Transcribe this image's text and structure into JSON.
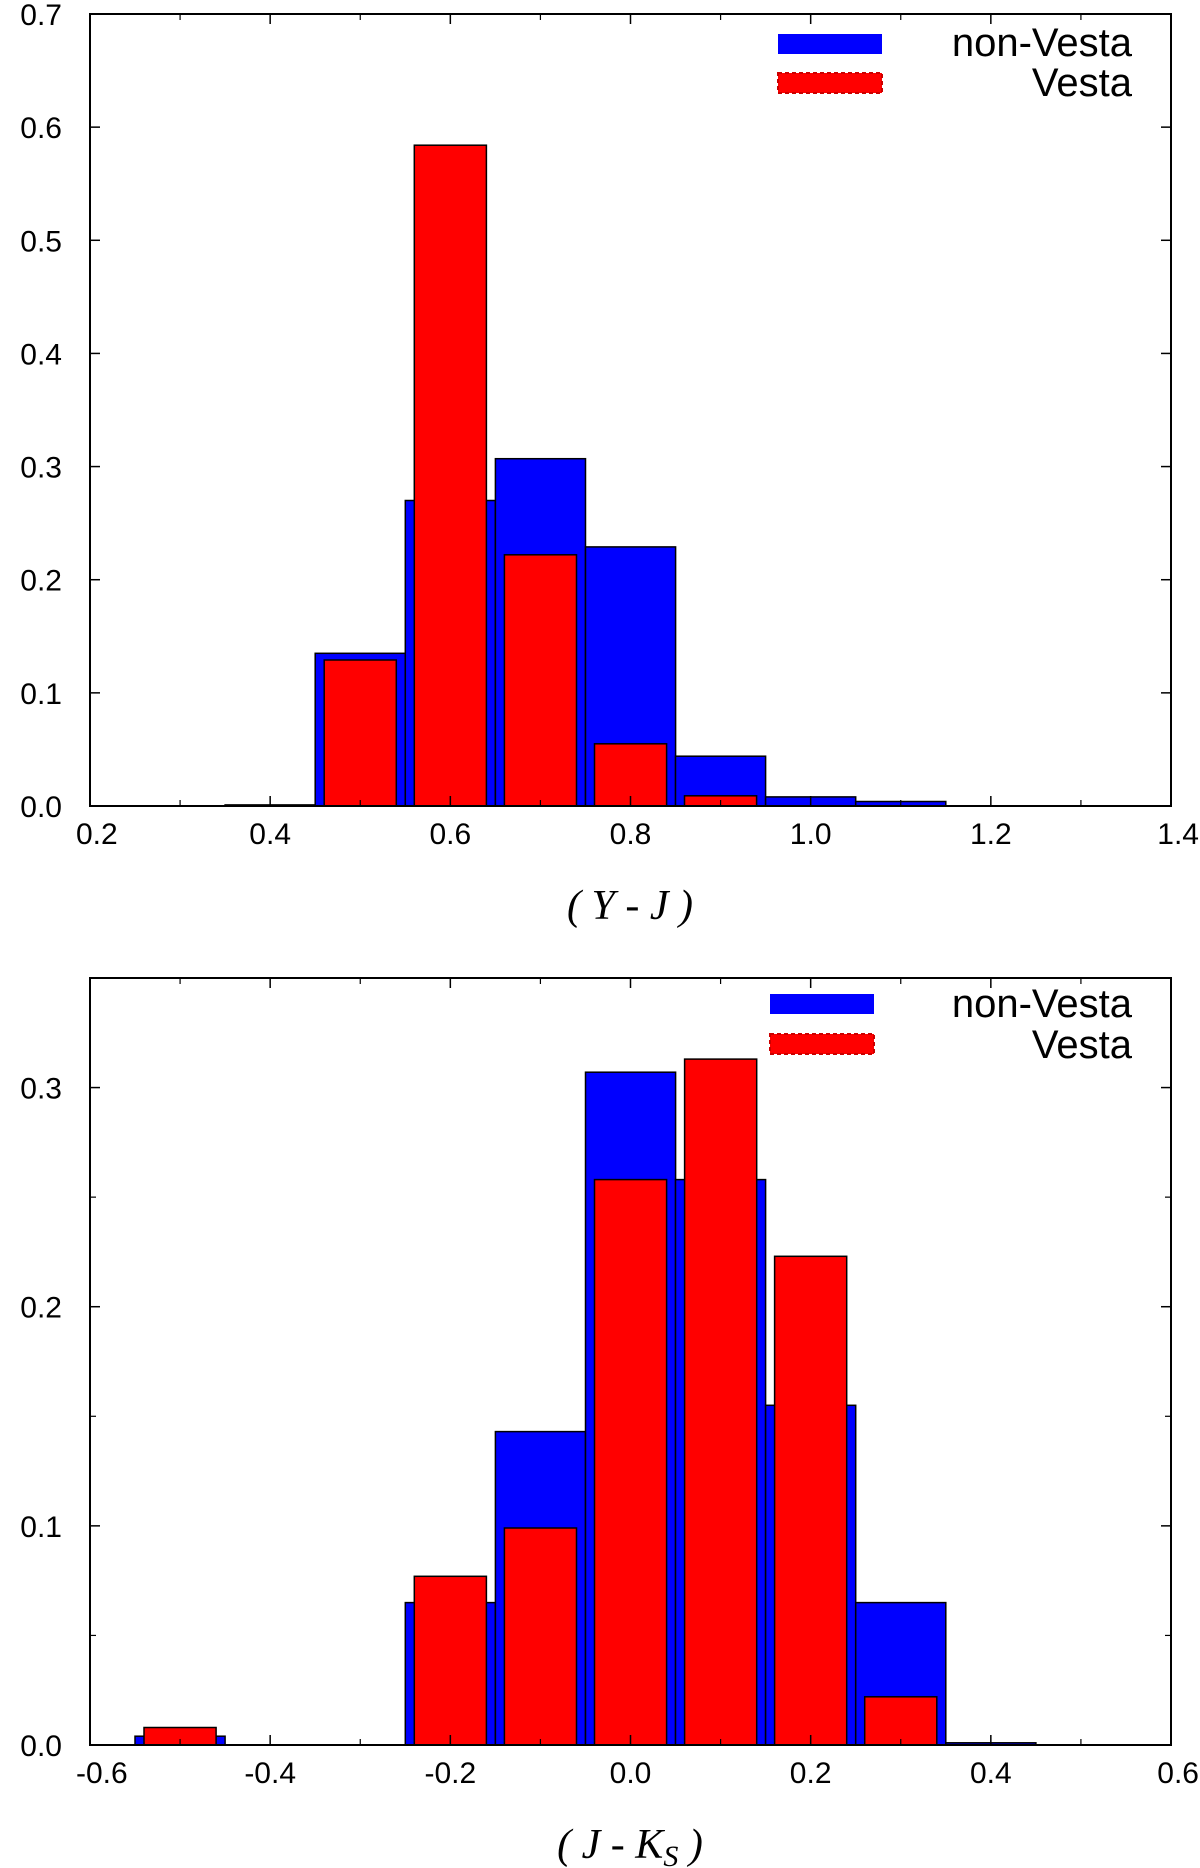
{
  "chart_data": [
    {
      "type": "bar",
      "title": "",
      "xlabel": "( Y - J )",
      "ylabel": "",
      "xlim": [
        0.2,
        1.4
      ],
      "ylim": [
        0.0,
        0.7
      ],
      "xticks": [
        "0.2",
        "0.4",
        "0.6",
        "0.8",
        "1.0",
        "1.2",
        "1.4"
      ],
      "yticks": [
        "0.0",
        "0.1",
        "0.2",
        "0.3",
        "0.4",
        "0.5",
        "0.6",
        "0.7"
      ],
      "legend_position": "top-right",
      "series": [
        {
          "name": "non-Vesta",
          "color": "#0000ff",
          "bin_width": 0.1,
          "x": [
            0.4,
            0.5,
            0.6,
            0.7,
            0.8,
            0.9,
            1.0,
            1.1
          ],
          "values": [
            0.001,
            0.135,
            0.27,
            0.307,
            0.229,
            0.044,
            0.008,
            0.004
          ]
        },
        {
          "name": "Vesta",
          "color": "#ff0000",
          "bin_width": 0.08,
          "x": [
            0.5,
            0.6,
            0.7,
            0.8,
            0.9
          ],
          "values": [
            0.129,
            0.584,
            0.222,
            0.055,
            0.009
          ]
        }
      ]
    },
    {
      "type": "bar",
      "title": "",
      "xlabel_main": "( J - K",
      "xlabel_sub": "S",
      "xlabel_end": " )",
      "ylabel": "",
      "xlim": [
        -0.6,
        0.6
      ],
      "ylim": [
        0.0,
        0.35
      ],
      "xticks": [
        "-0.6",
        "-0.4",
        "-0.2",
        "0.0",
        "0.2",
        "0.4",
        "0.6"
      ],
      "yticks": [
        "0.0",
        "0.1",
        "0.2",
        "0.3"
      ],
      "legend_position": "top-right",
      "series": [
        {
          "name": "non-Vesta",
          "color": "#0000ff",
          "bin_width": 0.1,
          "x": [
            -0.5,
            -0.2,
            -0.1,
            0.0,
            0.1,
            0.2,
            0.3,
            0.4
          ],
          "values": [
            0.004,
            0.065,
            0.143,
            0.307,
            0.258,
            0.155,
            0.065,
            0.001
          ]
        },
        {
          "name": "Vesta",
          "color": "#ff0000",
          "bin_width": 0.08,
          "x": [
            -0.5,
            -0.2,
            -0.1,
            0.0,
            0.1,
            0.2,
            0.3
          ],
          "values": [
            0.008,
            0.077,
            0.099,
            0.258,
            0.313,
            0.223,
            0.022
          ]
        }
      ]
    }
  ]
}
